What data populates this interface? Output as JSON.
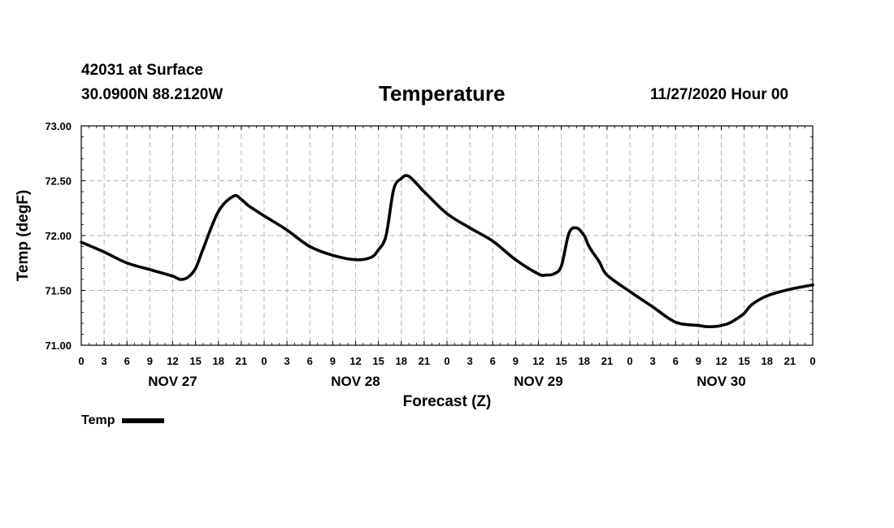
{
  "header": {
    "station": "42031 at Surface",
    "coords": "30.0900N 88.2120W",
    "title": "Temperature",
    "datetime": "11/27/2020 Hour 00"
  },
  "chart_data": {
    "type": "line",
    "title": "Temperature",
    "xlabel": "Forecast (Z)",
    "ylabel": "Temp (degF)",
    "ylim": [
      71.0,
      73.0
    ],
    "xlim_hours": [
      0,
      96
    ],
    "grid": true,
    "y_ticks": [
      "71.00",
      "71.50",
      "72.00",
      "72.50",
      "73.00"
    ],
    "x_tick_labels": [
      "0",
      "3",
      "6",
      "9",
      "12",
      "15",
      "18",
      "21",
      "0",
      "3",
      "6",
      "9",
      "12",
      "15",
      "18",
      "21",
      "0",
      "3",
      "6",
      "9",
      "12",
      "15",
      "18",
      "21",
      "0",
      "3",
      "6",
      "9",
      "12",
      "15",
      "18",
      "21",
      "0"
    ],
    "day_labels": [
      {
        "label": "NOV 27",
        "hour": 12
      },
      {
        "label": "NOV 28",
        "hour": 36
      },
      {
        "label": "NOV 29",
        "hour": 60
      },
      {
        "label": "NOV 30",
        "hour": 84
      }
    ],
    "legend": {
      "label": "Temp",
      "placement": "bottom-left"
    },
    "series": [
      {
        "name": "Temp",
        "color": "#000000",
        "x": [
          0,
          3,
          6,
          9,
          12,
          13,
          14,
          15,
          16,
          18,
          20,
          21,
          22,
          24,
          27,
          30,
          33,
          36,
          38,
          39,
          40,
          41,
          42,
          43,
          45,
          48,
          51,
          54,
          57,
          60,
          61,
          62,
          63,
          64,
          65,
          66,
          66.5,
          67,
          68,
          69,
          72,
          75,
          78,
          81,
          82,
          83,
          84,
          85,
          86,
          87,
          88,
          90,
          93,
          96
        ],
        "values": [
          71.94,
          71.85,
          71.75,
          71.69,
          71.63,
          71.6,
          71.62,
          71.7,
          71.88,
          72.22,
          72.36,
          72.33,
          72.27,
          72.18,
          72.05,
          71.9,
          71.82,
          71.78,
          71.8,
          71.87,
          72.0,
          72.42,
          72.52,
          72.54,
          72.4,
          72.2,
          72.07,
          71.95,
          71.78,
          71.65,
          71.64,
          71.65,
          71.72,
          72.02,
          72.07,
          72.0,
          71.92,
          71.86,
          71.76,
          71.64,
          71.49,
          71.35,
          71.21,
          71.18,
          71.17,
          71.17,
          71.18,
          71.2,
          71.24,
          71.29,
          71.37,
          71.45,
          71.51,
          71.55
        ]
      }
    ]
  }
}
